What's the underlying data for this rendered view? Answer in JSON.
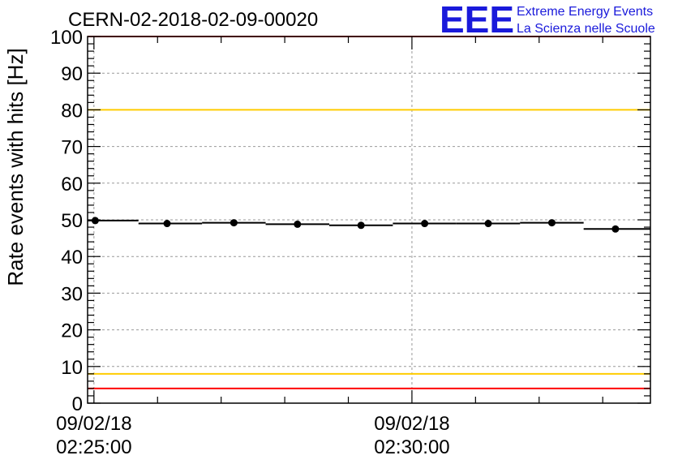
{
  "chart_data": {
    "type": "scatter",
    "title": "CERN-02-2018-02-09-00020",
    "ylabel": "Rate events with hits [Hz]",
    "ylim": [
      0,
      100
    ],
    "y_ticks": [
      0,
      10,
      20,
      30,
      40,
      50,
      60,
      70,
      80,
      90,
      100
    ],
    "x_range_min": [
      24.9,
      33.75
    ],
    "x_ticks": [
      {
        "min": 25,
        "date": "09/02/18",
        "time": "02:25:00"
      },
      {
        "min": 30,
        "date": "09/02/18",
        "time": "02:30:00"
      }
    ],
    "grid": true,
    "points": [
      {
        "x": 25.02,
        "x0": 24.9,
        "x1": 25.7,
        "y": 49.8
      },
      {
        "x": 26.15,
        "x0": 25.7,
        "x1": 26.7,
        "y": 49.0
      },
      {
        "x": 27.2,
        "x0": 26.7,
        "x1": 27.7,
        "y": 49.2
      },
      {
        "x": 28.2,
        "x0": 27.7,
        "x1": 28.7,
        "y": 48.8
      },
      {
        "x": 29.2,
        "x0": 28.7,
        "x1": 29.7,
        "y": 48.5
      },
      {
        "x": 30.2,
        "x0": 29.7,
        "x1": 30.7,
        "y": 49.0
      },
      {
        "x": 31.2,
        "x0": 30.7,
        "x1": 31.7,
        "y": 49.0
      },
      {
        "x": 32.2,
        "x0": 31.7,
        "x1": 32.7,
        "y": 49.2
      },
      {
        "x": 33.2,
        "x0": 32.7,
        "x1": 33.75,
        "y": 47.5
      }
    ],
    "reference_lines": [
      {
        "y": 100,
        "color": "#ff0000"
      },
      {
        "y": 80,
        "color": "#ffcc00"
      },
      {
        "y": 8,
        "color": "#ffcc00"
      },
      {
        "y": 4,
        "color": "#ff0000"
      }
    ]
  },
  "logo": {
    "letters": "EEE",
    "line1": "Extreme Energy Events",
    "line2": "La Scienza nelle Scuole",
    "color": "#1a1adb"
  }
}
